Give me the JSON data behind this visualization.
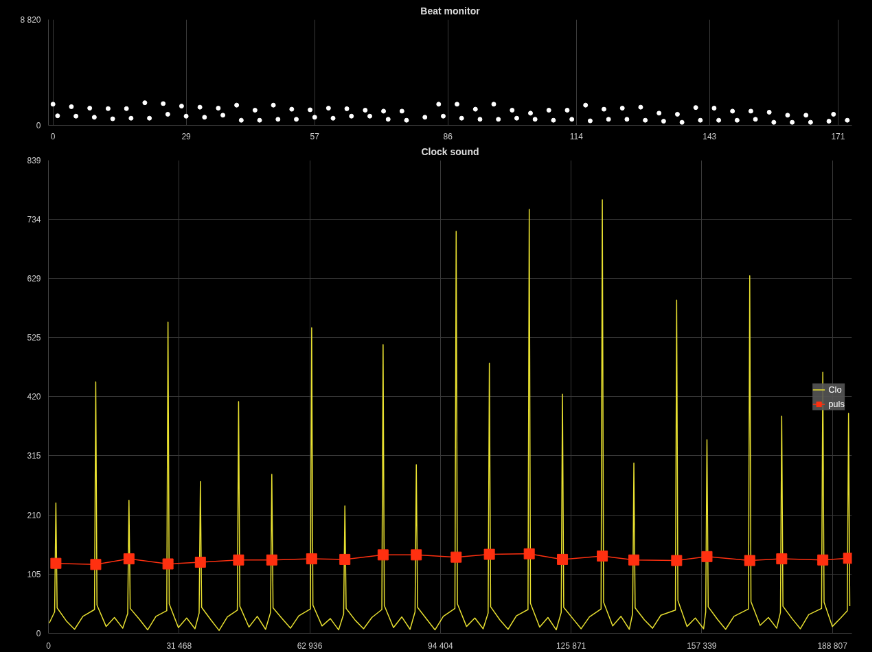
{
  "chart_data": [
    {
      "type": "scatter",
      "title": "Beat monitor",
      "series": [
        {
          "color": "#ffffff",
          "marker": "circle",
          "x": [
            0,
            1,
            4,
            5,
            8,
            9,
            12,
            13,
            16,
            17,
            20,
            21,
            24,
            25,
            28,
            29,
            32,
            33,
            36,
            37,
            40,
            41,
            44,
            45,
            48,
            49,
            52,
            53,
            56,
            57,
            60,
            61,
            64,
            65,
            68,
            69,
            72,
            73,
            76,
            77,
            81,
            84,
            85,
            88,
            89,
            92,
            93,
            96,
            97,
            100,
            101,
            104,
            105,
            108,
            109,
            112,
            113,
            116,
            117,
            120,
            121,
            124,
            125,
            128,
            129,
            132,
            133,
            136,
            137,
            140,
            141,
            144,
            145,
            148,
            149,
            152,
            153,
            156,
            157,
            160,
            161,
            164,
            165,
            169,
            170,
            173
          ],
          "values": [
            1760,
            790,
            1550,
            760,
            1430,
            670,
            1390,
            540,
            1390,
            590,
            1880,
            590,
            1810,
            920,
            1600,
            760,
            1510,
            670,
            1430,
            840,
            1680,
            420,
            1260,
            420,
            1680,
            500,
            1340,
            500,
            1290,
            670,
            1430,
            590,
            1380,
            760,
            1260,
            760,
            1180,
            500,
            1180,
            420,
            670,
            1760,
            760,
            1760,
            590,
            1340,
            500,
            1760,
            500,
            1260,
            590,
            1010,
            500,
            1260,
            420,
            1260,
            500,
            1680,
            370,
            1340,
            500,
            1430,
            500,
            1510,
            420,
            1010,
            340,
            920,
            250,
            1480,
            420,
            1430,
            420,
            1180,
            420,
            1180,
            500,
            1090,
            250,
            840,
            250,
            840,
            250,
            340,
            920,
            420
          ]
        }
      ],
      "xlim": [
        -1,
        174
      ],
      "xticks": [
        0,
        29,
        57,
        86,
        114,
        143,
        171
      ],
      "ylim": [
        0,
        8820
      ],
      "yticks": [
        0,
        {
          "value": 8820,
          "label": "8 820"
        }
      ],
      "grid": "x"
    },
    {
      "type": "line",
      "title": "Clock sound",
      "series": [
        {
          "name": "Clo",
          "color": "#e8e030",
          "marker": "none",
          "x": [
            200,
            1500,
            1800,
            2100,
            4300,
            6300,
            8300,
            11100,
            11400,
            11700,
            13900,
            15900,
            17900,
            19100,
            19400,
            19700,
            21900,
            23900,
            25900,
            28500,
            28800,
            29100,
            31300,
            33300,
            35300,
            36300,
            36600,
            36900,
            39100,
            41100,
            43100,
            45500,
            45800,
            46100,
            48300,
            50300,
            52300,
            53500,
            53800,
            54100,
            56300,
            58300,
            60300,
            63100,
            63400,
            63700,
            65900,
            67900,
            69900,
            71100,
            71400,
            71700,
            73900,
            75900,
            77900,
            80300,
            80600,
            80900,
            83100,
            85100,
            87100,
            88300,
            88600,
            88900,
            91100,
            93100,
            95100,
            97900,
            98200,
            98500,
            100700,
            102700,
            104700,
            105900,
            106200,
            106500,
            108700,
            110700,
            112700,
            115500,
            115800,
            116100,
            118300,
            120300,
            122300,
            123500,
            123800,
            124100,
            126300,
            128300,
            130300,
            133100,
            133400,
            133700,
            135900,
            137900,
            139900,
            140700,
            141000,
            141300,
            143500,
            145500,
            147500,
            151000,
            151300,
            151600,
            153800,
            155800,
            157800,
            158300,
            158600,
            158900,
            161100,
            163100,
            165100,
            168600,
            168900,
            169200,
            171400,
            173400,
            175400,
            176300,
            176600,
            176900,
            179100,
            181100,
            183100,
            186200,
            186500,
            186800,
            188800,
            190800,
            192400,
            192700,
            193000
          ],
          "values": [
            18,
            38,
            231,
            45,
            22,
            7,
            30,
            42,
            446,
            50,
            12,
            28,
            9,
            35,
            236,
            44,
            25,
            6,
            30,
            40,
            552,
            52,
            10,
            27,
            8,
            36,
            269,
            46,
            24,
            5,
            29,
            41,
            411,
            48,
            11,
            30,
            7,
            37,
            282,
            45,
            26,
            9,
            31,
            43,
            542,
            50,
            13,
            26,
            6,
            34,
            226,
            44,
            23,
            8,
            28,
            42,
            512,
            49,
            10,
            29,
            7,
            38,
            299,
            46,
            25,
            6,
            30,
            44,
            713,
            52,
            12,
            27,
            8,
            36,
            479,
            47,
            24,
            7,
            31,
            42,
            752,
            53,
            11,
            28,
            6,
            37,
            424,
            46,
            26,
            8,
            29,
            43,
            769,
            55,
            13,
            30,
            7,
            35,
            302,
            45,
            24,
            9,
            32,
            41,
            591,
            58,
            12,
            27,
            8,
            38,
            343,
            47,
            25,
            7,
            30,
            43,
            634,
            56,
            14,
            28,
            9,
            37,
            385,
            48,
            26,
            8,
            33,
            44,
            463,
            55,
            12,
            27,
            40,
            390,
            48
          ]
        },
        {
          "name": "puls",
          "color": "#ff3010",
          "marker": "square",
          "x": [
            1800,
            11400,
            19400,
            28800,
            36600,
            45800,
            53800,
            63400,
            71400,
            80600,
            88600,
            98200,
            106200,
            115800,
            123800,
            133400,
            141000,
            151300,
            158600,
            168900,
            176600,
            186500,
            192700
          ],
          "values": [
            124,
            122,
            132,
            123,
            126,
            130,
            130,
            132,
            131,
            139,
            139,
            135,
            140,
            141,
            131,
            137,
            130,
            129,
            136,
            129,
            132,
            130,
            133
          ]
        }
      ],
      "xlim": [
        0,
        193500
      ],
      "xticks": [
        0,
        {
          "value": 31468,
          "label": "31 468"
        },
        {
          "value": 62936,
          "label": "62 936"
        },
        {
          "value": 94404,
          "label": "94 404"
        },
        {
          "value": 125871,
          "label": "125 871"
        },
        {
          "value": 157339,
          "label": "157 339"
        },
        {
          "value": 188807,
          "label": "188 807"
        }
      ],
      "ylim": [
        0,
        839
      ],
      "yticks": [
        0,
        105,
        210,
        315,
        420,
        525,
        629,
        734,
        839
      ],
      "grid": true,
      "legend": "right"
    }
  ]
}
